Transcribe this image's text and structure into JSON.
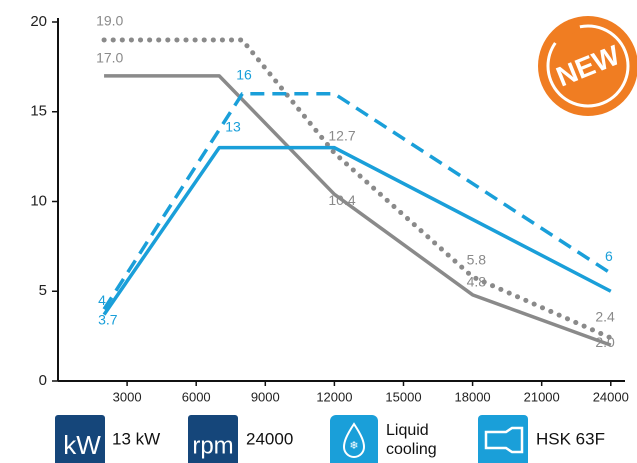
{
  "chart_data": {
    "type": "line",
    "xlim": [
      0,
      24400
    ],
    "ylim": [
      0,
      20
    ],
    "xticks": [
      3000,
      6000,
      9000,
      12000,
      15000,
      18000,
      21000,
      24000
    ],
    "yticks": [
      0,
      5,
      10,
      15,
      20
    ],
    "series": [
      {
        "color": "#8a8a8a",
        "style": "dotted",
        "x": [
          2000,
          8000,
          12000,
          18000,
          24000
        ],
        "values": [
          19,
          19,
          12.7,
          5.8,
          2.4
        ],
        "value_labels": [
          "19.0",
          null,
          "12.7",
          "5.8",
          "2.4"
        ]
      },
      {
        "color": "#8a8a8a",
        "style": "solid",
        "x": [
          2000,
          7000,
          12000,
          18000,
          24000
        ],
        "values": [
          17,
          17,
          10.4,
          4.8,
          2.0
        ],
        "value_labels": [
          "17.0",
          null,
          "10.4",
          "4.8",
          "2.0"
        ]
      },
      {
        "color": "#1a9fd9",
        "style": "dashed",
        "x": [
          2000,
          8000,
          12000,
          24000
        ],
        "values": [
          4,
          16,
          16,
          6
        ],
        "value_labels": [
          "4",
          "16",
          null,
          "6"
        ]
      },
      {
        "color": "#1a9fd9",
        "style": "solid",
        "x": [
          2000,
          7000,
          12000,
          24000
        ],
        "values": [
          3.7,
          13,
          13,
          5
        ],
        "value_labels": [
          "3.7",
          "13",
          null,
          null
        ]
      }
    ]
  },
  "badges": [
    {
      "icon": "kW",
      "label": "13 kW"
    },
    {
      "icon": "rpm",
      "label": "24000"
    },
    {
      "label_lines": [
        "Liquid",
        "cooling"
      ]
    },
    {
      "label": "HSK 63F"
    }
  ],
  "new_badge": "NEW"
}
